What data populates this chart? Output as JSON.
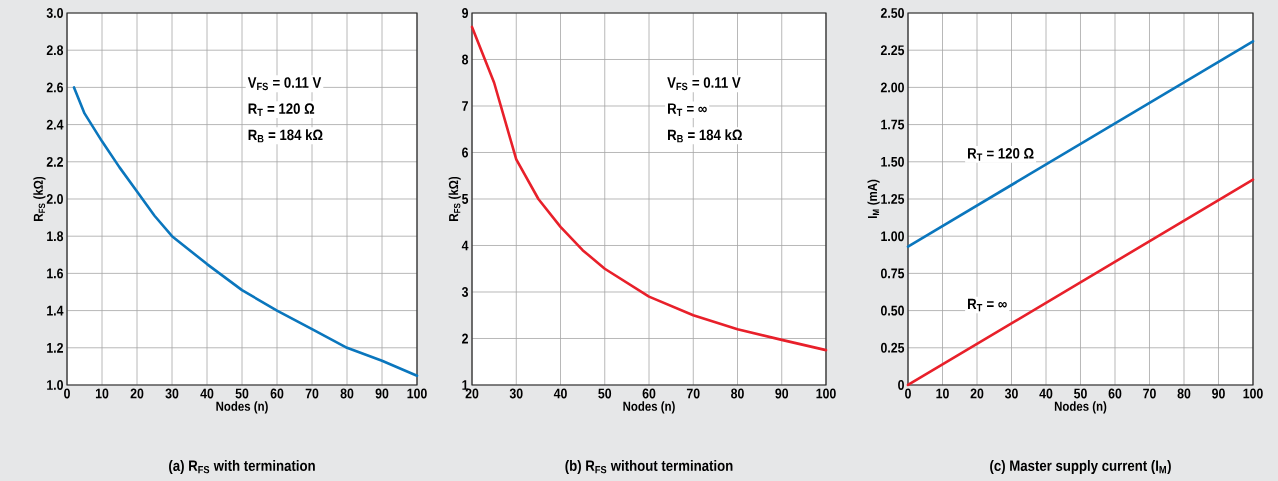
{
  "chart_data": [
    {
      "type": "line",
      "title": "(a) R$_{FS}$ with termination",
      "xlabel": "Nodes (n)",
      "ylabel": "R$_{FS}$ (kΩ)",
      "xlim": [
        0,
        100
      ],
      "ylim": [
        1,
        3
      ],
      "xticks": [
        0,
        10,
        20,
        30,
        40,
        50,
        60,
        70,
        80,
        90,
        100
      ],
      "yticks": [
        {
          "value": 1,
          "label": "1.0"
        },
        1.2,
        1.4,
        1.6,
        1.8,
        {
          "value": 2,
          "label": "2.0"
        },
        2.2,
        2.4,
        2.6,
        2.8,
        {
          "value": 3,
          "label": "3.0"
        }
      ],
      "grid": true,
      "line_style": "solid",
      "series": [
        {
          "color": "#0a76bd",
          "x": [
            2,
            5,
            10,
            15,
            20,
            25,
            30,
            40,
            50,
            60,
            70,
            80,
            90,
            100
          ],
          "values": [
            2.6,
            2.46,
            2.31,
            2.17,
            2.04,
            1.91,
            1.8,
            1.65,
            1.51,
            1.4,
            1.3,
            1.2,
            1.13,
            1.05
          ]
        }
      ],
      "annotations": [
        "V$_{FS}$ = 0.11 V",
        "R$_{T}$ = 120 Ω",
        "R$_{B}$ = 184 kΩ"
      ]
    },
    {
      "type": "line",
      "title": "(b) R$_{FS}$ without termination",
      "xlabel": "Nodes (n)",
      "ylabel": "R$_{FS}$ (kΩ)",
      "xlim": [
        20,
        100
      ],
      "ylim": [
        1,
        9
      ],
      "xticks": [
        20,
        30,
        40,
        50,
        60,
        70,
        80,
        90,
        100
      ],
      "yticks": [
        1,
        2,
        3,
        4,
        5,
        6,
        7,
        8,
        9
      ],
      "grid": true,
      "line_style": "solid",
      "series": [
        {
          "color": "#e8202a",
          "x": [
            20,
            25,
            30,
            35,
            40,
            45,
            50,
            60,
            70,
            80,
            90,
            100
          ],
          "values": [
            8.7,
            7.5,
            5.85,
            5.0,
            4.4,
            3.9,
            3.5,
            2.9,
            2.5,
            2.2,
            1.97,
            1.75
          ]
        }
      ],
      "annotations": [
        "V$_{FS}$ = 0.11 V",
        "R$_{T}$ = ∞",
        "R$_{B}$ = 184 kΩ"
      ]
    },
    {
      "type": "line",
      "title": "(c) Master supply current (I$_{M}$)",
      "xlabel": "Nodes (n)",
      "ylabel": "I$_{M}$ (mA)",
      "xlim": [
        0,
        100
      ],
      "ylim": [
        0,
        2.5
      ],
      "xticks": [
        0,
        10,
        20,
        30,
        40,
        50,
        60,
        70,
        80,
        90,
        100
      ],
      "yticks": [
        0,
        {
          "value": 0.25,
          "label": "0.25"
        },
        {
          "value": 0.5,
          "label": "0.50"
        },
        {
          "value": 0.75,
          "label": "0.75"
        },
        {
          "value": 1,
          "label": "1.00"
        },
        {
          "value": 1.25,
          "label": "1.25"
        },
        {
          "value": 1.5,
          "label": "1.50"
        },
        {
          "value": 1.75,
          "label": "1.75"
        },
        {
          "value": 2,
          "label": "2.00"
        },
        {
          "value": 2.25,
          "label": "2.25"
        },
        {
          "value": 2.5,
          "label": "2.50"
        }
      ],
      "grid": true,
      "line_style": "solid",
      "series": [
        {
          "color": "#0a76bd",
          "x": [
            0,
            100
          ],
          "values": [
            0.93,
            2.31
          ]
        },
        {
          "color": "#e8202a",
          "x": [
            0,
            100
          ],
          "values": [
            0,
            1.38
          ]
        }
      ],
      "annotations": [
        "R$_{T}$ = 120 Ω",
        "R$_{T}$ = ∞"
      ]
    }
  ]
}
